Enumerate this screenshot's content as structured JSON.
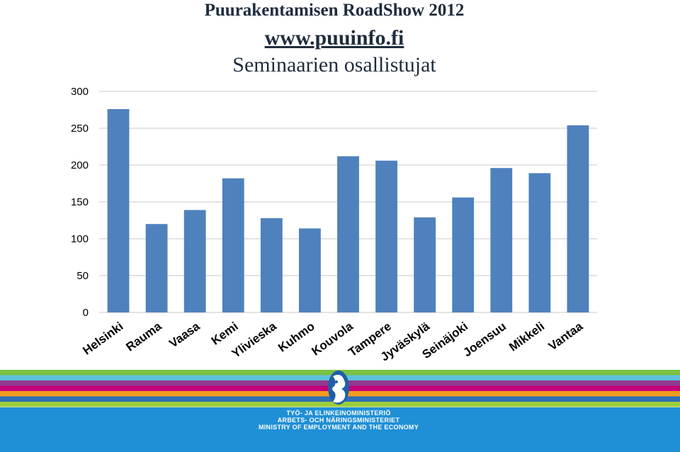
{
  "colors": {
    "bar": "#4f81bd",
    "footer_blue": "#1f8fd6",
    "stripes": [
      "#7ac143",
      "#5ec1d9",
      "#8e3b8f",
      "#c4007a",
      "#f39c1e",
      "#2f6eb5",
      "#9ccc3c"
    ]
  },
  "chart_data": {
    "type": "bar",
    "title": [
      "Puurakentamisen RoadShow 2012",
      "www.puuinfo.fi",
      "Seminaarien osallistujat"
    ],
    "categories": [
      "Helsinki",
      "Rauma",
      "Vaasa",
      "Kemi",
      "Ylivieska",
      "Kuhmo",
      "Kouvola",
      "Tampere",
      "Jyväskylä",
      "Seinäjoki",
      "Joensuu",
      "Mikkeli",
      "Vantaa"
    ],
    "values": [
      276,
      120,
      139,
      182,
      128,
      114,
      212,
      206,
      129,
      156,
      196,
      189,
      254
    ],
    "ylim": [
      0,
      300
    ],
    "yticks": [
      0,
      50,
      100,
      150,
      200,
      250,
      300
    ],
    "grid": true,
    "xlabel": "",
    "ylabel": ""
  },
  "footer": {
    "logo_icon": "finnish-lion-coat-of-arms-icon",
    "ministry_lines": [
      "TYÖ- JA ELINKEINOMINISTERIÖ",
      "ARBETS- OCH NÄRINGSMINISTERIET",
      "MINISTRY OF EMPLOYMENT AND THE ECONOMY"
    ]
  }
}
